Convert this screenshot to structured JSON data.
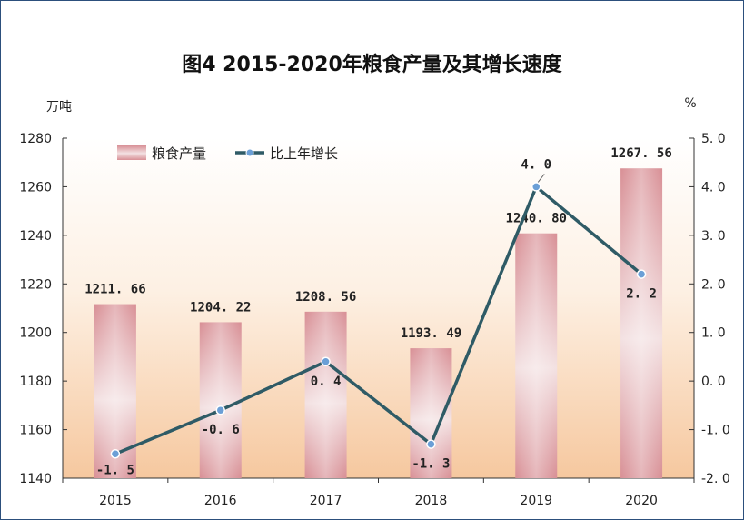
{
  "chart_data": {
    "type": "bar",
    "title": "图4   2015-2020年粮食产量及其增长速度",
    "categories": [
      "2015",
      "2016",
      "2017",
      "2018",
      "2019",
      "2020"
    ],
    "series": [
      {
        "name": "粮食产量",
        "type": "bar",
        "axis": "left",
        "values": [
          1211.66,
          1204.22,
          1208.56,
          1193.49,
          1240.8,
          1267.56
        ],
        "labels": [
          "1211. 66",
          "1204. 22",
          "1208. 56",
          "1193. 49",
          "1240. 80",
          "1267. 56"
        ],
        "color": "#d9999e"
      },
      {
        "name": "比上年增长",
        "type": "line",
        "axis": "right",
        "values": [
          -1.5,
          -0.6,
          0.4,
          -1.3,
          4.0,
          2.2
        ],
        "labels": [
          "-1. 5",
          "-0. 6",
          "0. 4",
          "-1. 3",
          "4. 0",
          "2. 2"
        ],
        "color": "#2f5b66",
        "marker_color": "#6b9fd6"
      }
    ],
    "y_left": {
      "unit": "万吨",
      "ylim": [
        1140,
        1280
      ],
      "ticks": [
        "1140",
        "1160",
        "1180",
        "1200",
        "1220",
        "1240",
        "1260",
        "1280"
      ]
    },
    "y_right": {
      "unit": "%",
      "ylim": [
        -2.0,
        5.0
      ],
      "ticks": [
        "-2. 0",
        "-1. 0",
        "0. 0",
        "1. 0",
        "2. 0",
        "3. 0",
        "4. 0",
        "5. 0"
      ]
    },
    "legend_position": "top-left",
    "background": "#f7d2b0"
  }
}
